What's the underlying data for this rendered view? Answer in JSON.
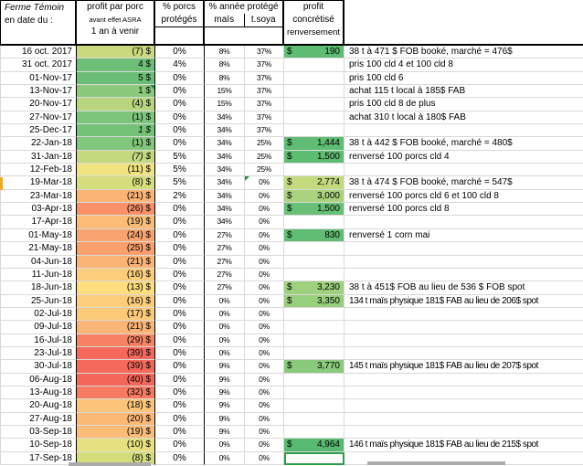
{
  "header": {
    "date_line1": "Ferme Témoin",
    "date_line2": "en date du :",
    "profit_line1": "profit par porc",
    "profit_line2": "avant effet ASRA",
    "profit_line3": "1 an à venir",
    "pct_porcs_line1": "% porcs",
    "pct_porcs_line2": "protégés",
    "pct_annee": "% année protégé",
    "mais": "maïs",
    "soya": "t.soya",
    "conc_line1": "profit",
    "conc_line2": "concrétisé",
    "conc_line3": "renversement"
  },
  "colors": {
    "grid_line": "#d9d9d9",
    "header_border": "#000000",
    "selection_green": "#2f9e49",
    "error_triangle_green": "#1f8a43",
    "orange_marker": "#f5a623"
  },
  "rows": [
    {
      "date": "16 oct. 2017",
      "profit": "(7) $",
      "profit_bg": "#cbd97e",
      "italic": false,
      "pp": "0%",
      "pm": "8%",
      "ps": "37%",
      "conc": "190",
      "conc_bg": "#5fbc73",
      "comment": "38 t  à 471 $ FOB booké, marché = 476$",
      "narrow": false
    },
    {
      "date": "31 oct. 2017",
      "profit": "4  $",
      "profit_bg": "#6dbe77",
      "italic": false,
      "pp": "4%",
      "pm": "8%",
      "ps": "37%",
      "conc": null,
      "conc_bg": null,
      "comment": "pris 100 cld 4  et 100 cld  8",
      "narrow": false
    },
    {
      "date": "01-Nov-17",
      "profit": "5  $",
      "profit_bg": "#6abd76",
      "italic": false,
      "pp": "0%",
      "pm": "8%",
      "ps": "37%",
      "conc": null,
      "conc_bg": null,
      "comment": "pris 100 cld 6",
      "narrow": false
    },
    {
      "date": "13-Nov-17",
      "profit": "1  $",
      "profit_bg": "#8bca7d",
      "italic": false,
      "pp": "0%",
      "pm": "15%",
      "ps": "37%",
      "conc": null,
      "conc_bg": null,
      "comment": "achat 115 t  local à 185$ FAB",
      "narrow": false,
      "tri_profit": true
    },
    {
      "date": "20-Nov-17",
      "profit": "(4) $",
      "profit_bg": "#b8d57e",
      "italic": false,
      "pp": "0%",
      "pm": "15%",
      "ps": "37%",
      "conc": null,
      "conc_bg": null,
      "comment": "pris 100 cld 8 de plus",
      "narrow": false
    },
    {
      "date": "27-Nov-17",
      "profit": "(1) $",
      "profit_bg": "#7dc57b",
      "italic": false,
      "pp": "0%",
      "pm": "34%",
      "ps": "37%",
      "conc": null,
      "conc_bg": null,
      "comment": "achat 310 t  local à 180$ FAB",
      "narrow": false
    },
    {
      "date": "25-Dec-17",
      "profit": "1  $",
      "profit_bg": "#74c178",
      "italic": true,
      "pp": "0%",
      "pm": "34%",
      "ps": "37%",
      "conc": null,
      "conc_bg": null,
      "comment": "",
      "narrow": false
    },
    {
      "date": "22-Jan-18",
      "profit": "(1) $",
      "profit_bg": "#80c67b",
      "italic": false,
      "pp": "0%",
      "pm": "34%",
      "ps": "25%",
      "conc": "1,444",
      "conc_bg": "#5fbc73",
      "comment": "38 t  à 442 $ FOB booké, marché = 480$",
      "narrow": false
    },
    {
      "date": "31-Jan-18",
      "profit": "(7) $",
      "profit_bg": "#c4d97e",
      "italic": true,
      "pp": "5%",
      "pm": "34%",
      "ps": "25%",
      "conc": "1,500",
      "conc_bg": "#5fbc73",
      "comment": "renversé 100 porcs cld 4",
      "narrow": false
    },
    {
      "date": "12-Feb-18",
      "profit": "(11) $",
      "profit_bg": "#f0e380",
      "italic": false,
      "pp": "5%",
      "pm": "34%",
      "ps": "25%",
      "conc": null,
      "conc_bg": null,
      "comment": "",
      "narrow": false
    },
    {
      "date": "19-Mar-18",
      "profit": "(8) $",
      "profit_bg": "#d6dd7d",
      "italic": false,
      "pp": "5%",
      "pm": "34%",
      "ps": "0%",
      "conc": "2,774",
      "conc_bg": "#c3da7f",
      "comment": "38 t  à 474 $ FOB booké, marché = 547$",
      "narrow": false,
      "tri_soya": true
    },
    {
      "date": "23-Mar-18",
      "profit": "(21) $",
      "profit_bg": "#fab575",
      "italic": false,
      "pp": "2%",
      "pm": "34%",
      "ps": "0%",
      "conc": "3,000",
      "conc_bg": "#a9d37e",
      "comment": "renversé 100 porcs cld 6 et 100  cld 8",
      "narrow": false
    },
    {
      "date": "03-Apr-18",
      "profit": "(26) $",
      "profit_bg": "#f89068",
      "italic": false,
      "pp": "0%",
      "pm": "34%",
      "ps": "0%",
      "conc": "1,500",
      "conc_bg": "#67c076",
      "comment": "renversé 100 porcs  cld 8",
      "narrow": false
    },
    {
      "date": "17-Apr-18",
      "profit": "(19) $",
      "profit_bg": "#fbbc77",
      "italic": false,
      "pp": "0%",
      "pm": "34%",
      "ps": "0%",
      "conc": null,
      "conc_bg": null,
      "comment": "",
      "narrow": false
    },
    {
      "date": "01-May-18",
      "profit": "(24) $",
      "profit_bg": "#f9a470",
      "italic": false,
      "pp": "0%",
      "pm": "27%",
      "ps": "0%",
      "conc": "830",
      "conc_bg": "#62bd74",
      "comment": "renversé 1 corn   mai",
      "narrow": false
    },
    {
      "date": "21-May-18",
      "profit": "(25) $",
      "profit_bg": "#f9a06e",
      "italic": false,
      "pp": "0%",
      "pm": "27%",
      "ps": "0%",
      "conc": null,
      "conc_bg": null,
      "comment": "",
      "narrow": false
    },
    {
      "date": "04-Jun-18",
      "profit": "(21) $",
      "profit_bg": "#fab475",
      "italic": false,
      "pp": "0%",
      "pm": "27%",
      "ps": "0%",
      "conc": null,
      "conc_bg": null,
      "comment": "",
      "narrow": false
    },
    {
      "date": "11-Jun-18",
      "profit": "(16) $",
      "profit_bg": "#fccd7a",
      "italic": false,
      "pp": "0%",
      "pm": "27%",
      "ps": "0%",
      "conc": null,
      "conc_bg": null,
      "comment": "",
      "narrow": false
    },
    {
      "date": "18-Jun-18",
      "profit": "(13) $",
      "profit_bg": "#fedd7e",
      "italic": false,
      "pp": "0%",
      "pm": "27%",
      "ps": "0%",
      "conc": "3,230",
      "conc_bg": "#9ed17e",
      "comment": "38 t à 451$ FOB  au lieu de  536 $ FOB spot",
      "narrow": false
    },
    {
      "date": "25-Jun-18",
      "profit": "(16) $",
      "profit_bg": "#fccd7a",
      "italic": false,
      "pp": "0%",
      "pm": "0%",
      "ps": "0%",
      "conc": "3,350",
      "conc_bg": "#98cf7d",
      "comment": "134 t maïs physique 181$ FAB  au lieu de 206$ spot",
      "narrow": true
    },
    {
      "date": "02-Jul-18",
      "profit": "(17) $",
      "profit_bg": "#fcc979",
      "italic": false,
      "pp": "0%",
      "pm": "0%",
      "ps": "0%",
      "conc": null,
      "conc_bg": null,
      "comment": "",
      "narrow": false
    },
    {
      "date": "09-Jul-18",
      "profit": "(21) $",
      "profit_bg": "#fab475",
      "italic": false,
      "pp": "0%",
      "pm": "0%",
      "ps": "0%",
      "conc": null,
      "conc_bg": null,
      "comment": "",
      "narrow": false
    },
    {
      "date": "16-Jul-18",
      "profit": "(29) $",
      "profit_bg": "#f78263",
      "italic": false,
      "pp": "0%",
      "pm": "0%",
      "ps": "0%",
      "conc": null,
      "conc_bg": null,
      "comment": "",
      "narrow": false
    },
    {
      "date": "23-Jul-18",
      "profit": "(39) $",
      "profit_bg": "#f5685c",
      "italic": false,
      "pp": "0%",
      "pm": "0%",
      "ps": "0%",
      "conc": null,
      "conc_bg": null,
      "comment": "",
      "narrow": false
    },
    {
      "date": "30-Jul-18",
      "profit": "(39) $",
      "profit_bg": "#f5685c",
      "italic": false,
      "pp": "0%",
      "pm": "9%",
      "ps": "0%",
      "conc": "3,770",
      "conc_bg": "#8aca7c",
      "comment": "145 t maïs physique 181$ FAB  au lieu de 207$ spot",
      "narrow": true
    },
    {
      "date": "06-Aug-18",
      "profit": "(40) $",
      "profit_bg": "#f4655a",
      "italic": false,
      "pp": "0%",
      "pm": "9%",
      "ps": "0%",
      "conc": null,
      "conc_bg": null,
      "comment": "",
      "narrow": false
    },
    {
      "date": "13-Aug-18",
      "profit": "(32) $",
      "profit_bg": "#f77a61",
      "italic": false,
      "pp": "0%",
      "pm": "9%",
      "ps": "0%",
      "conc": null,
      "conc_bg": null,
      "comment": "",
      "narrow": false
    },
    {
      "date": "20-Aug-18",
      "profit": "(18) $",
      "profit_bg": "#fbc478",
      "italic": false,
      "pp": "0%",
      "pm": "9%",
      "ps": "0%",
      "conc": null,
      "conc_bg": null,
      "comment": "",
      "narrow": false
    },
    {
      "date": "27-Aug-18",
      "profit": "(20) $",
      "profit_bg": "#fbb975",
      "italic": false,
      "pp": "0%",
      "pm": "9%",
      "ps": "0%",
      "conc": null,
      "conc_bg": null,
      "comment": "",
      "narrow": false
    },
    {
      "date": "03-Sep-18",
      "profit": "(19) $",
      "profit_bg": "#fbbc77",
      "italic": false,
      "pp": "0%",
      "pm": "9%",
      "ps": "0%",
      "conc": null,
      "conc_bg": null,
      "comment": "",
      "narrow": false
    },
    {
      "date": "10-Sep-18",
      "profit": "(10) $",
      "profit_bg": "#e6e17e",
      "italic": false,
      "pp": "0%",
      "pm": "0%",
      "ps": "0%",
      "conc": "4,964",
      "conc_bg": "#57ba70",
      "comment": "146 t maïs physique 181$ FAB  au lieu de 215$ spot",
      "narrow": true
    },
    {
      "date": "17-Sep-18",
      "profit": "(8) $",
      "profit_bg": "#d3dd7c",
      "italic": false,
      "pp": "0%",
      "pm": "0%",
      "ps": "0%",
      "conc": null,
      "conc_bg": null,
      "comment": "",
      "narrow": false,
      "selected_conc": true
    }
  ]
}
